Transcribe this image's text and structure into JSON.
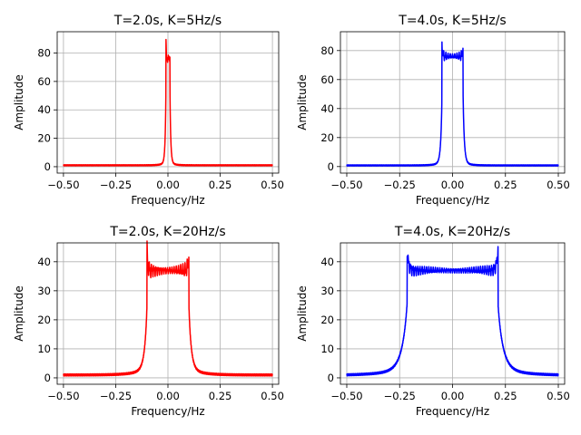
{
  "chart_data": [
    {
      "type": "line",
      "title": "T=2.0s, K=5Hz/s",
      "xlabel": "Frequency/Hz",
      "ylabel": "Amplitude",
      "xlim": [
        -0.53,
        0.53
      ],
      "ylim": [
        -4.5,
        95
      ],
      "xticks": [
        -0.5,
        -0.25,
        0.0,
        0.25,
        0.5
      ],
      "xtick_labels": [
        "−0.50",
        "−0.25",
        "0.00",
        "0.25",
        "0.50"
      ],
      "yticks": [
        0,
        20,
        40,
        60,
        80
      ],
      "ytick_labels": [
        "0",
        "20",
        "40",
        "60",
        "80"
      ],
      "grid": true,
      "color": "#ff0000",
      "bandwidth": 0.01,
      "plateau": 76,
      "edge_peak": 90,
      "baseline": 1.0,
      "ripple": 8
    },
    {
      "type": "line",
      "title": "T=4.0s, K=5Hz/s",
      "xlabel": "Frequency/Hz",
      "ylabel": "Amplitude",
      "xlim": [
        -0.53,
        0.53
      ],
      "ylim": [
        -4.5,
        93
      ],
      "xticks": [
        -0.5,
        -0.25,
        0.0,
        0.25,
        0.5
      ],
      "xtick_labels": [
        "−0.50",
        "−0.25",
        "0.00",
        "0.25",
        "0.50"
      ],
      "yticks": [
        0,
        20,
        40,
        60,
        80
      ],
      "ytick_labels": [
        "0",
        "20",
        "40",
        "60",
        "80"
      ],
      "grid": true,
      "color": "#0000ff",
      "bandwidth": 0.05,
      "plateau": 76,
      "edge_peak": 89,
      "baseline": 0.8,
      "ripple": 5
    },
    {
      "type": "line",
      "title": "T=2.0s, K=20Hz/s",
      "xlabel": "Frequency/Hz",
      "ylabel": "Amplitude",
      "xlim": [
        -0.53,
        0.53
      ],
      "ylim": [
        -2.2,
        46.5
      ],
      "xticks": [
        -0.5,
        -0.25,
        0.0,
        0.25,
        0.5
      ],
      "xtick_labels": [
        "−0.50",
        "−0.25",
        "0.00",
        "0.25",
        "0.50"
      ],
      "yticks": [
        0,
        10,
        20,
        30,
        40
      ],
      "ytick_labels": [
        "0",
        "10",
        "20",
        "30",
        "40"
      ],
      "grid": true,
      "color": "#ff0000",
      "bandwidth": 0.1,
      "plateau": 37,
      "edge_peak": 44,
      "baseline": 1.0,
      "ripple": 3.5
    },
    {
      "type": "line",
      "title": "T=4.0s, K=20Hz/s",
      "xlabel": "Frequency/Hz",
      "ylabel": "Amplitude",
      "xlim": [
        -0.53,
        0.53
      ],
      "ylim": [
        -2.2,
        46.5
      ],
      "xticks": [
        -0.5,
        -0.25,
        0.0,
        0.25,
        0.5
      ],
      "xtick_labels": [
        "−0.50",
        "−0.25",
        "0.00",
        "0.25",
        "0.50"
      ],
      "yticks": [
        0,
        10,
        20,
        30,
        40
      ],
      "ytick_labels": [
        "0",
        "10",
        "20",
        "30",
        "40"
      ],
      "grid": true,
      "color": "#0000ff",
      "bandwidth": 0.215,
      "plateau": 37,
      "edge_peak": 44,
      "baseline": 0.8,
      "ripple": 2.5
    }
  ]
}
